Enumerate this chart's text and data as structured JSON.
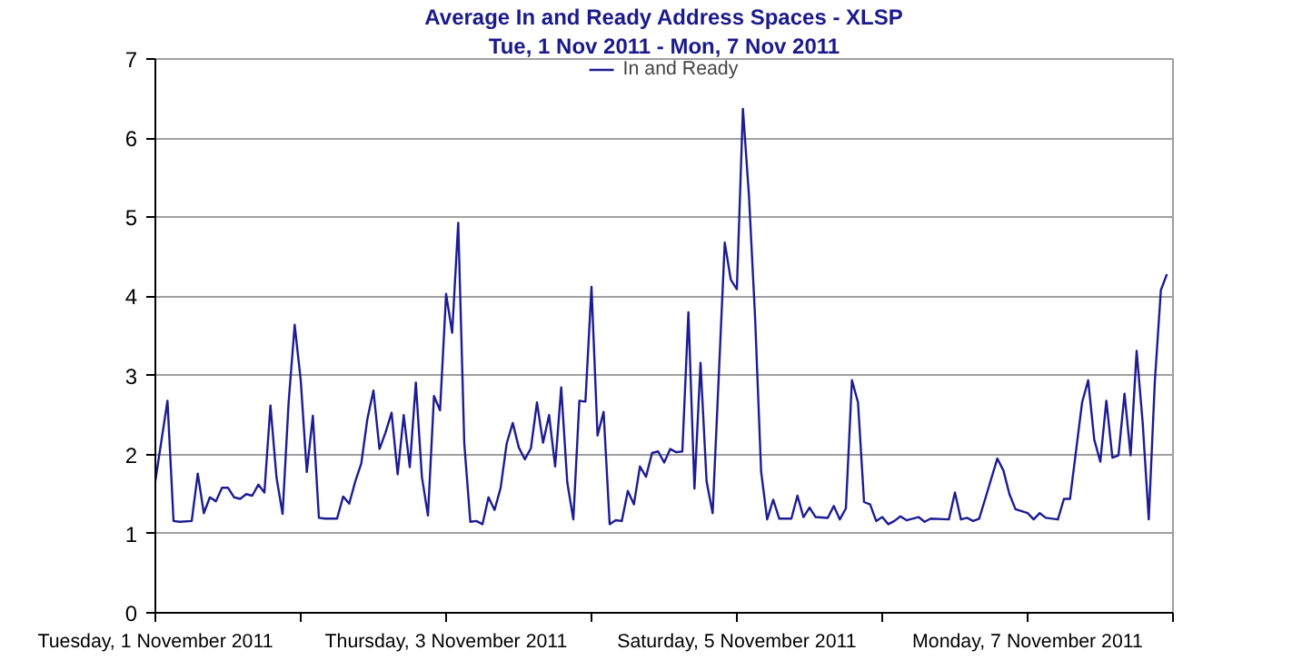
{
  "chart_data": {
    "type": "line",
    "title": "Average In and Ready Address Spaces - XLSP",
    "subtitle": "Tue, 1 Nov 2011 - Mon, 7 Nov 2011",
    "x": [
      "2011-11-01T00:00",
      "2011-11-01T02:00",
      "2011-11-01T03:00",
      "2011-11-01T04:00",
      "2011-11-01T06:00",
      "2011-11-01T07:00",
      "2011-11-01T08:00",
      "2011-11-01T09:00",
      "2011-11-01T10:00",
      "2011-11-01T11:00",
      "2011-11-01T12:00",
      "2011-11-01T13:00",
      "2011-11-01T14:00",
      "2011-11-01T15:00",
      "2011-11-01T16:00",
      "2011-11-01T17:00",
      "2011-11-01T18:00",
      "2011-11-01T19:00",
      "2011-11-01T20:00",
      "2011-11-01T21:00",
      "2011-11-01T22:00",
      "2011-11-01T23:00",
      "2011-11-02T00:00",
      "2011-11-02T01:00",
      "2011-11-02T02:00",
      "2011-11-02T03:00",
      "2011-11-02T04:00",
      "2011-11-02T06:00",
      "2011-11-02T07:00",
      "2011-11-02T08:00",
      "2011-11-02T09:00",
      "2011-11-02T10:00",
      "2011-11-02T11:00",
      "2011-11-02T12:00",
      "2011-11-02T13:00",
      "2011-11-02T14:00",
      "2011-11-02T15:00",
      "2011-11-02T16:00",
      "2011-11-02T17:00",
      "2011-11-02T18:00",
      "2011-11-02T19:00",
      "2011-11-02T20:00",
      "2011-11-02T21:00",
      "2011-11-02T22:00",
      "2011-11-02T23:00",
      "2011-11-03T00:00",
      "2011-11-03T01:00",
      "2011-11-03T02:00",
      "2011-11-03T03:00",
      "2011-11-03T04:00",
      "2011-11-03T05:00",
      "2011-11-03T06:00",
      "2011-11-03T07:00",
      "2011-11-03T08:00",
      "2011-11-03T09:00",
      "2011-11-03T10:00",
      "2011-11-03T11:00",
      "2011-11-03T12:00",
      "2011-11-03T13:00",
      "2011-11-03T14:00",
      "2011-11-03T15:00",
      "2011-11-03T16:00",
      "2011-11-03T17:00",
      "2011-11-03T18:00",
      "2011-11-03T19:00",
      "2011-11-03T20:00",
      "2011-11-03T21:00",
      "2011-11-03T22:00",
      "2011-11-03T23:00",
      "2011-11-04T00:00",
      "2011-11-04T01:00",
      "2011-11-04T02:00",
      "2011-11-04T03:00",
      "2011-11-04T04:00",
      "2011-11-04T05:00",
      "2011-11-04T06:00",
      "2011-11-04T07:00",
      "2011-11-04T08:00",
      "2011-11-04T09:00",
      "2011-11-04T10:00",
      "2011-11-04T11:00",
      "2011-11-04T12:00",
      "2011-11-04T13:00",
      "2011-11-04T14:00",
      "2011-11-04T15:00",
      "2011-11-04T16:00",
      "2011-11-04T17:00",
      "2011-11-04T18:00",
      "2011-11-04T19:00",
      "2011-11-04T20:00",
      "2011-11-04T22:00",
      "2011-11-04T23:00",
      "2011-11-05T00:00",
      "2011-11-05T01:00",
      "2011-11-05T02:00",
      "2011-11-05T03:00",
      "2011-11-05T04:00",
      "2011-11-05T05:00",
      "2011-11-05T06:00",
      "2011-11-05T07:00",
      "2011-11-05T09:00",
      "2011-11-05T10:00",
      "2011-11-05T11:00",
      "2011-11-05T12:00",
      "2011-11-05T13:00",
      "2011-11-05T15:00",
      "2011-11-05T16:00",
      "2011-11-05T17:00",
      "2011-11-05T18:00",
      "2011-11-05T19:00",
      "2011-11-05T20:00",
      "2011-11-05T21:00",
      "2011-11-05T22:00",
      "2011-11-05T23:00",
      "2011-11-06T00:00",
      "2011-11-06T01:00",
      "2011-11-06T02:00",
      "2011-11-06T03:00",
      "2011-11-06T04:00",
      "2011-11-06T06:00",
      "2011-11-06T07:00",
      "2011-11-06T08:00",
      "2011-11-06T11:00",
      "2011-11-06T12:00",
      "2011-11-06T13:00",
      "2011-11-06T14:00",
      "2011-11-06T15:00",
      "2011-11-06T16:00",
      "2011-11-06T17:00",
      "2011-11-06T19:00",
      "2011-11-06T20:00",
      "2011-11-06T21:00",
      "2011-11-06T22:00",
      "2011-11-07T00:00",
      "2011-11-07T01:00",
      "2011-11-07T02:00",
      "2011-11-07T03:00",
      "2011-11-07T05:00",
      "2011-11-07T06:00",
      "2011-11-07T07:00",
      "2011-11-07T09:00",
      "2011-11-07T10:00",
      "2011-11-07T11:00",
      "2011-11-07T12:00",
      "2011-11-07T13:00",
      "2011-11-07T14:00",
      "2011-11-07T15:00",
      "2011-11-07T16:00",
      "2011-11-07T17:00",
      "2011-11-07T18:00",
      "2011-11-07T19:00",
      "2011-11-07T20:00",
      "2011-11-07T21:00",
      "2011-11-07T22:00",
      "2011-11-07T23:00"
    ],
    "series": [
      {
        "name": "In and Ready",
        "color": "#1c1c94",
        "values": [
          1.67,
          2.68,
          1.16,
          1.15,
          1.16,
          1.76,
          1.26,
          1.46,
          1.41,
          1.58,
          1.58,
          1.46,
          1.44,
          1.5,
          1.48,
          1.62,
          1.52,
          2.62,
          1.71,
          1.25,
          2.66,
          3.64,
          2.94,
          1.78,
          2.49,
          1.2,
          1.19,
          1.19,
          1.47,
          1.38,
          1.66,
          1.89,
          2.45,
          2.81,
          2.07,
          2.28,
          2.53,
          1.75,
          2.5,
          1.84,
          2.91,
          1.72,
          1.23,
          2.74,
          2.56,
          4.03,
          3.54,
          4.93,
          2.14,
          1.15,
          1.16,
          1.12,
          1.46,
          1.3,
          1.58,
          2.14,
          2.4,
          2.09,
          1.94,
          2.08,
          2.66,
          2.15,
          2.5,
          1.85,
          2.85,
          1.65,
          1.18,
          2.68,
          2.67,
          4.12,
          2.24,
          2.54,
          1.12,
          1.17,
          1.16,
          1.54,
          1.37,
          1.85,
          1.72,
          2.02,
          2.04,
          1.9,
          2.07,
          2.03,
          2.04,
          3.8,
          1.57,
          3.16,
          1.66,
          1.26,
          4.68,
          4.21,
          4.09,
          6.37,
          5.27,
          3.75,
          1.79,
          1.18,
          1.43,
          1.19,
          1.19,
          1.48,
          1.21,
          1.33,
          1.21,
          1.2,
          1.35,
          1.18,
          1.32,
          2.94,
          2.66,
          1.4,
          1.37,
          1.16,
          1.21,
          1.12,
          1.16,
          1.22,
          1.17,
          1.21,
          1.15,
          1.19,
          1.18,
          1.52,
          1.18,
          1.2,
          1.16,
          1.19,
          1.44,
          1.95,
          1.8,
          1.5,
          1.31,
          1.26,
          1.18,
          1.26,
          1.2,
          1.18,
          1.44,
          1.44,
          2.66,
          2.94,
          2.19,
          1.91,
          2.68,
          1.96,
          1.99,
          2.77,
          1.99,
          3.31,
          2.4,
          1.18,
          2.92,
          4.08,
          4.28
        ]
      }
    ],
    "xlim": [
      "2011-11-01",
      "2011-11-08"
    ],
    "xticks": [
      {
        "value": "2011-11-01",
        "label": "Tuesday, 1 November 2011"
      },
      {
        "value": "2011-11-02",
        "label": null
      },
      {
        "value": "2011-11-03",
        "label": "Thursday, 3 November 2011"
      },
      {
        "value": "2011-11-04",
        "label": null
      },
      {
        "value": "2011-11-05",
        "label": "Saturday, 5 November 2011"
      },
      {
        "value": "2011-11-06",
        "label": null
      },
      {
        "value": "2011-11-07",
        "label": "Monday, 7 November 2011"
      },
      {
        "value": "2011-11-08",
        "label": null
      }
    ],
    "ylim": [
      0,
      7
    ],
    "yticks": [
      0,
      1,
      2,
      3,
      4,
      5,
      6,
      7
    ],
    "grid": "y",
    "legend": "top",
    "marker": "none",
    "line_style": "solid"
  }
}
